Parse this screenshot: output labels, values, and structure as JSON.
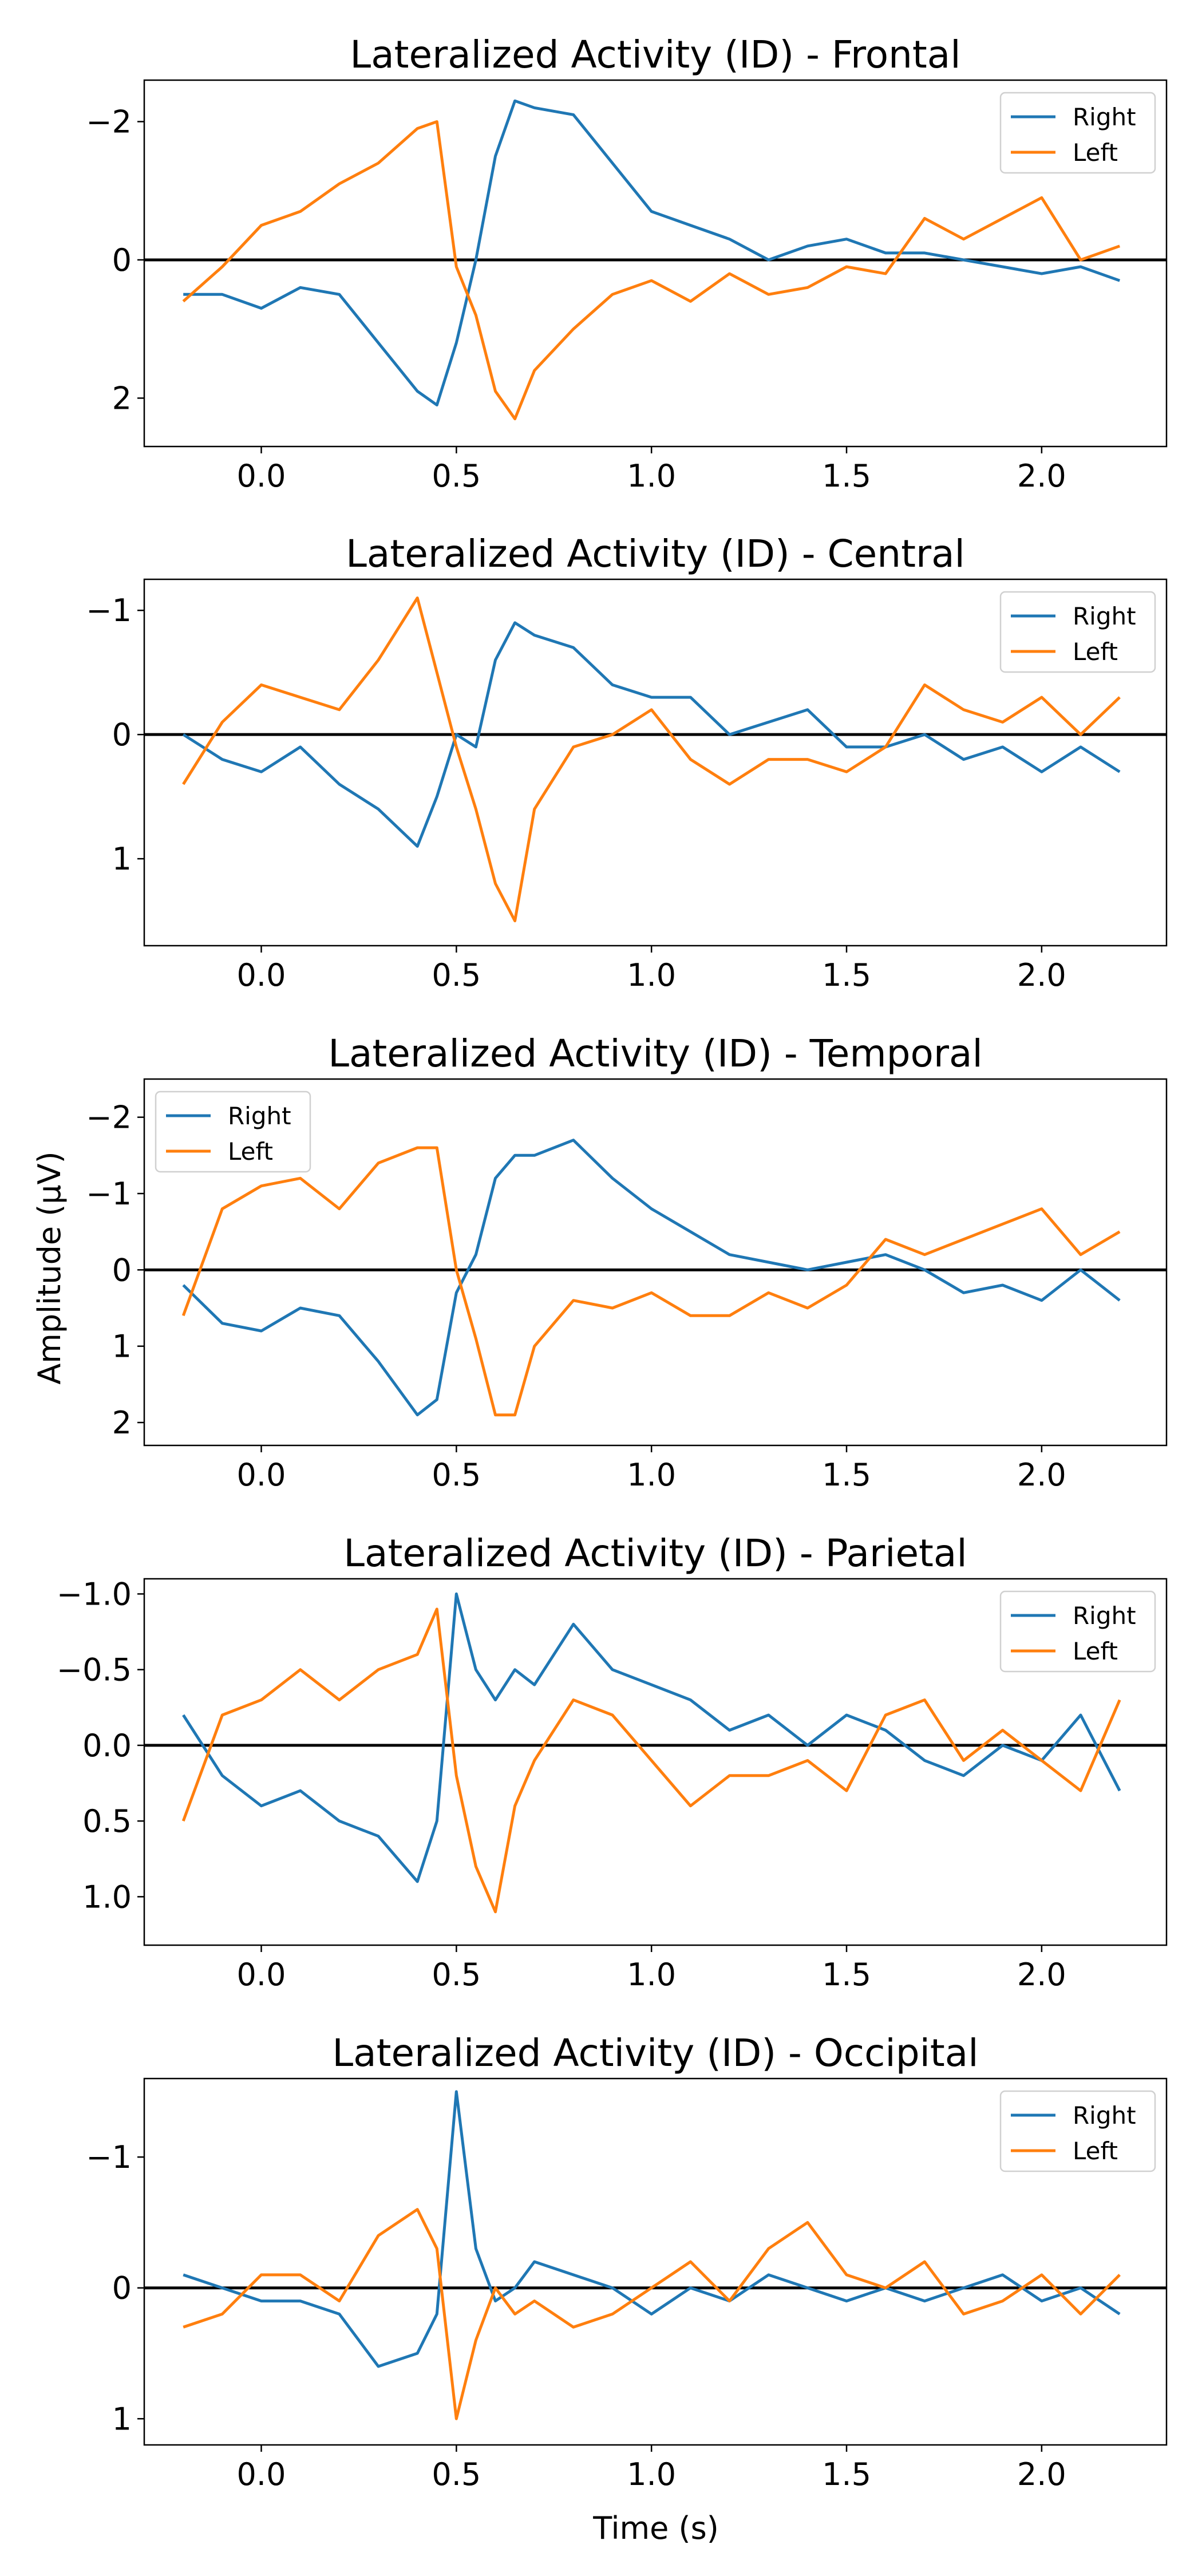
{
  "figure": {
    "xlabel": "Time (s)",
    "ylabel": "Amplitude (µV)"
  },
  "colors": {
    "Right": "#1f77b4",
    "Left": "#ff7f0e",
    "zero_line": "#000000"
  },
  "chart_data": [
    {
      "type": "line",
      "title": "Lateralized Activity (ID) - Frontal",
      "xlim": [
        -0.3,
        2.32
      ],
      "ylim": [
        2.7,
        -2.6
      ],
      "y_inverted": true,
      "xticks": [
        0.0,
        0.5,
        1.0,
        1.5,
        2.0
      ],
      "xtick_labels": [
        "0.0",
        "0.5",
        "1.0",
        "1.5",
        "2.0"
      ],
      "yticks": [
        -2,
        0,
        2
      ],
      "ytick_labels": [
        "−2",
        "0",
        "2"
      ],
      "legend": "upper right",
      "x": [
        -0.2,
        -0.1,
        0.0,
        0.1,
        0.2,
        0.3,
        0.4,
        0.45,
        0.5,
        0.55,
        0.6,
        0.65,
        0.7,
        0.8,
        0.9,
        1.0,
        1.1,
        1.2,
        1.3,
        1.4,
        1.5,
        1.6,
        1.7,
        1.8,
        1.9,
        2.0,
        2.1,
        2.2
      ],
      "series": [
        {
          "name": "Right",
          "values": [
            0.5,
            0.5,
            0.7,
            0.4,
            0.5,
            1.2,
            1.9,
            2.1,
            1.2,
            0.0,
            -1.5,
            -2.3,
            -2.2,
            -2.1,
            -1.4,
            -0.7,
            -0.5,
            -0.3,
            0.0,
            -0.2,
            -0.3,
            -0.1,
            -0.1,
            0.0,
            0.1,
            0.2,
            0.1,
            0.3
          ]
        },
        {
          "name": "Left",
          "values": [
            0.6,
            0.1,
            -0.5,
            -0.7,
            -1.1,
            -1.4,
            -1.9,
            -2.0,
            0.1,
            0.8,
            1.9,
            2.3,
            1.6,
            1.0,
            0.5,
            0.3,
            0.6,
            0.2,
            0.5,
            0.4,
            0.1,
            0.2,
            -0.6,
            -0.3,
            -0.6,
            -0.9,
            0.0,
            -0.2
          ]
        }
      ]
    },
    {
      "type": "line",
      "title": "Lateralized Activity (ID) - Central",
      "xlim": [
        -0.3,
        2.32
      ],
      "ylim": [
        1.7,
        -1.25
      ],
      "y_inverted": true,
      "xticks": [
        0.0,
        0.5,
        1.0,
        1.5,
        2.0
      ],
      "xtick_labels": [
        "0.0",
        "0.5",
        "1.0",
        "1.5",
        "2.0"
      ],
      "yticks": [
        -1,
        0,
        1
      ],
      "ytick_labels": [
        "−1",
        "0",
        "1"
      ],
      "legend": "upper right",
      "x": [
        -0.2,
        -0.1,
        0.0,
        0.1,
        0.2,
        0.3,
        0.4,
        0.45,
        0.5,
        0.55,
        0.6,
        0.65,
        0.7,
        0.8,
        0.9,
        1.0,
        1.1,
        1.2,
        1.3,
        1.4,
        1.5,
        1.6,
        1.7,
        1.8,
        1.9,
        2.0,
        2.1,
        2.2
      ],
      "series": [
        {
          "name": "Right",
          "values": [
            0.0,
            0.2,
            0.3,
            0.1,
            0.4,
            0.6,
            0.9,
            0.5,
            0.0,
            0.1,
            -0.6,
            -0.9,
            -0.8,
            -0.7,
            -0.4,
            -0.3,
            -0.3,
            0.0,
            -0.1,
            -0.2,
            0.1,
            0.1,
            0.0,
            0.2,
            0.1,
            0.3,
            0.1,
            0.3
          ]
        },
        {
          "name": "Left",
          "values": [
            0.4,
            -0.1,
            -0.4,
            -0.3,
            -0.2,
            -0.6,
            -1.1,
            -0.5,
            0.1,
            0.6,
            1.2,
            1.5,
            0.6,
            0.1,
            0.0,
            -0.2,
            0.2,
            0.4,
            0.2,
            0.2,
            0.3,
            0.1,
            -0.4,
            -0.2,
            -0.1,
            -0.3,
            0.0,
            -0.3
          ]
        }
      ]
    },
    {
      "type": "line",
      "title": "Lateralized Activity (ID) - Temporal",
      "xlim": [
        -0.3,
        2.32
      ],
      "ylim": [
        2.3,
        -2.5
      ],
      "y_inverted": true,
      "xticks": [
        0.0,
        0.5,
        1.0,
        1.5,
        2.0
      ],
      "xtick_labels": [
        "0.0",
        "0.5",
        "1.0",
        "1.5",
        "2.0"
      ],
      "yticks": [
        -2,
        -1,
        0,
        1,
        2
      ],
      "ytick_labels": [
        "−2",
        "−1",
        "0",
        "1",
        "2"
      ],
      "legend": "upper left",
      "x": [
        -0.2,
        -0.1,
        0.0,
        0.1,
        0.2,
        0.3,
        0.4,
        0.45,
        0.5,
        0.55,
        0.6,
        0.65,
        0.7,
        0.8,
        0.9,
        1.0,
        1.1,
        1.2,
        1.3,
        1.4,
        1.5,
        1.6,
        1.7,
        1.8,
        1.9,
        2.0,
        2.1,
        2.2
      ],
      "series": [
        {
          "name": "Right",
          "values": [
            0.2,
            0.7,
            0.8,
            0.5,
            0.6,
            1.2,
            1.9,
            1.7,
            0.3,
            -0.2,
            -1.2,
            -1.5,
            -1.5,
            -1.7,
            -1.2,
            -0.8,
            -0.5,
            -0.2,
            -0.1,
            0.0,
            -0.1,
            -0.2,
            0.0,
            0.3,
            0.2,
            0.4,
            0.0,
            0.4
          ]
        },
        {
          "name": "Left",
          "values": [
            0.6,
            -0.8,
            -1.1,
            -1.2,
            -0.8,
            -1.4,
            -1.6,
            -1.6,
            0.0,
            0.9,
            1.9,
            1.9,
            1.0,
            0.4,
            0.5,
            0.3,
            0.6,
            0.6,
            0.3,
            0.5,
            0.2,
            -0.4,
            -0.2,
            -0.4,
            -0.6,
            -0.8,
            -0.2,
            -0.5
          ]
        }
      ]
    },
    {
      "type": "line",
      "title": "Lateralized Activity (ID) - Parietal",
      "xlim": [
        -0.3,
        2.32
      ],
      "ylim": [
        1.32,
        -1.1
      ],
      "y_inverted": true,
      "xticks": [
        0.0,
        0.5,
        1.0,
        1.5,
        2.0
      ],
      "xtick_labels": [
        "0.0",
        "0.5",
        "1.0",
        "1.5",
        "2.0"
      ],
      "yticks": [
        -1.0,
        -0.5,
        0.0,
        0.5,
        1.0
      ],
      "ytick_labels": [
        "−1.0",
        "−0.5",
        "0.0",
        "0.5",
        "1.0"
      ],
      "legend": "upper right",
      "x": [
        -0.2,
        -0.1,
        0.0,
        0.1,
        0.2,
        0.3,
        0.4,
        0.45,
        0.5,
        0.55,
        0.6,
        0.65,
        0.7,
        0.8,
        0.9,
        1.0,
        1.1,
        1.2,
        1.3,
        1.4,
        1.5,
        1.6,
        1.7,
        1.8,
        1.9,
        2.0,
        2.1,
        2.2
      ],
      "series": [
        {
          "name": "Right",
          "values": [
            -0.2,
            0.2,
            0.4,
            0.3,
            0.5,
            0.6,
            0.9,
            0.5,
            -1.0,
            -0.5,
            -0.3,
            -0.5,
            -0.4,
            -0.8,
            -0.5,
            -0.4,
            -0.3,
            -0.1,
            -0.2,
            0.0,
            -0.2,
            -0.1,
            0.1,
            0.2,
            0.0,
            0.1,
            -0.2,
            0.3
          ]
        },
        {
          "name": "Left",
          "values": [
            0.5,
            -0.2,
            -0.3,
            -0.5,
            -0.3,
            -0.5,
            -0.6,
            -0.9,
            0.2,
            0.8,
            1.1,
            0.4,
            0.1,
            -0.3,
            -0.2,
            0.1,
            0.4,
            0.2,
            0.2,
            0.1,
            0.3,
            -0.2,
            -0.3,
            0.1,
            -0.1,
            0.1,
            0.3,
            -0.3
          ]
        }
      ]
    },
    {
      "type": "line",
      "title": "Lateralized Activity (ID) - Occipital",
      "xlim": [
        -0.3,
        2.32
      ],
      "ylim": [
        1.2,
        -1.6
      ],
      "y_inverted": true,
      "xticks": [
        0.0,
        0.5,
        1.0,
        1.5,
        2.0
      ],
      "xtick_labels": [
        "0.0",
        "0.5",
        "1.0",
        "1.5",
        "2.0"
      ],
      "yticks": [
        -1,
        0,
        1
      ],
      "ytick_labels": [
        "−1",
        "0",
        "1"
      ],
      "legend": "upper right",
      "x": [
        -0.2,
        -0.1,
        0.0,
        0.1,
        0.2,
        0.3,
        0.4,
        0.45,
        0.5,
        0.55,
        0.6,
        0.65,
        0.7,
        0.8,
        0.9,
        1.0,
        1.1,
        1.2,
        1.3,
        1.4,
        1.5,
        1.6,
        1.7,
        1.8,
        1.9,
        2.0,
        2.1,
        2.2
      ],
      "series": [
        {
          "name": "Right",
          "values": [
            -0.1,
            0.0,
            0.1,
            0.1,
            0.2,
            0.6,
            0.5,
            0.2,
            -1.5,
            -0.3,
            0.1,
            0.0,
            -0.2,
            -0.1,
            0.0,
            0.2,
            0.0,
            0.1,
            -0.1,
            0.0,
            0.1,
            0.0,
            0.1,
            0.0,
            -0.1,
            0.1,
            0.0,
            0.2
          ]
        },
        {
          "name": "Left",
          "values": [
            0.3,
            0.2,
            -0.1,
            -0.1,
            0.1,
            -0.4,
            -0.6,
            -0.3,
            1.0,
            0.4,
            0.0,
            0.2,
            0.1,
            0.3,
            0.2,
            0.0,
            -0.2,
            0.1,
            -0.3,
            -0.5,
            -0.1,
            0.0,
            -0.2,
            0.2,
            0.1,
            -0.1,
            0.2,
            -0.1
          ]
        }
      ]
    }
  ]
}
